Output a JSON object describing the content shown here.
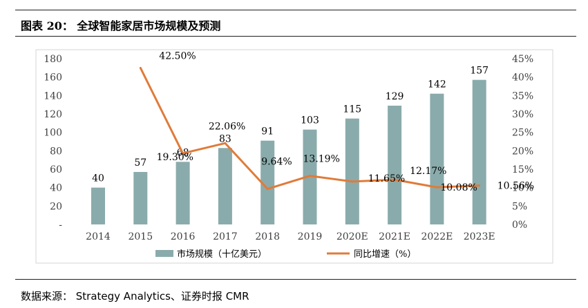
{
  "figure": {
    "caption": "图表 20：  全球智能家居市场规模及预测",
    "source": "数据来源： Strategy Analytics、证券时报 CMR"
  },
  "colors": {
    "bar": "#8AABAB",
    "line": "#E07B39",
    "axis_text": "#404040",
    "frame": "#cfcfcf",
    "rule": "#1f1f1f"
  },
  "chart_data": {
    "type": "bar+line",
    "title": "全球智能家居市场规模及预测",
    "categories": [
      "2014",
      "2015",
      "2016",
      "2017",
      "2018",
      "2019",
      "2020E",
      "2021E",
      "2022E",
      "2023E"
    ],
    "series": [
      {
        "name": "市场规模（十亿美元）",
        "type": "bar",
        "axis": "left",
        "values": [
          40,
          57,
          68,
          83,
          91,
          103,
          115,
          129,
          142,
          157
        ],
        "labels": [
          "40",
          "57",
          "68",
          "83",
          "91",
          "103",
          "115",
          "129",
          "142",
          "157"
        ]
      },
      {
        "name": "同比增速（%）",
        "type": "line",
        "axis": "right",
        "values": [
          null,
          42.5,
          19.3,
          22.06,
          9.64,
          13.19,
          11.65,
          12.17,
          10.08,
          10.56
        ],
        "labels": [
          null,
          "42.50%",
          "19.30%",
          "22.06%",
          "9.64%",
          "13.19%",
          "11.65%",
          "12.17%",
          "10.08%",
          "10.56%"
        ]
      }
    ],
    "y_left": {
      "range": [
        0,
        180
      ],
      "step": 20,
      "tick_labels": [
        "-",
        "20",
        "40",
        "60",
        "80",
        "100",
        "120",
        "140",
        "160",
        "180"
      ]
    },
    "y_right": {
      "range": [
        0,
        45
      ],
      "step": 5,
      "tick_labels": [
        "0%",
        "5%",
        "10%",
        "15%",
        "20%",
        "25%",
        "30%",
        "35%",
        "40%",
        "45%"
      ]
    },
    "legend": {
      "position": "bottom",
      "items": [
        "市场规模（十亿美元）",
        "同比增速（%）"
      ]
    }
  }
}
